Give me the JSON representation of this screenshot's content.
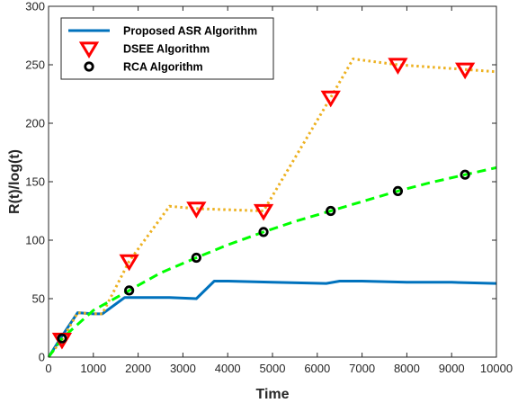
{
  "chart_data": {
    "type": "line",
    "title": "",
    "xlabel": "Time",
    "ylabel": "R(t)/log(t)",
    "xlim": [
      0,
      10000
    ],
    "ylim": [
      0,
      300
    ],
    "xticks": [
      0,
      1000,
      2000,
      3000,
      4000,
      5000,
      6000,
      7000,
      8000,
      9000,
      10000
    ],
    "yticks": [
      0,
      50,
      100,
      150,
      200,
      250,
      300
    ],
    "grid": false,
    "legend_position": "top-left",
    "series": [
      {
        "name": "Proposed ASR Algorithm",
        "color": "#0072BD",
        "line_style": "solid",
        "marker": "none",
        "x": [
          0,
          300,
          650,
          1000,
          1200,
          1700,
          2200,
          2700,
          3300,
          3700,
          4000,
          5000,
          6200,
          6500,
          7000,
          8000,
          9000,
          10000
        ],
        "y": [
          0,
          18,
          38,
          37,
          37,
          51,
          51,
          51,
          50,
          65,
          65,
          64,
          63,
          65,
          65,
          64,
          64,
          63
        ]
      },
      {
        "name": "DSEE Algorithm",
        "color": "#EDB120",
        "marker_color": "#FF0000",
        "line_style": "dotted",
        "marker": "triangle-down",
        "x": [
          0,
          300,
          650,
          1000,
          1200,
          1800,
          2700,
          3300,
          4800,
          6300,
          6800,
          7800,
          9300,
          10000
        ],
        "y": [
          0,
          15,
          38,
          37,
          37,
          82,
          129,
          127,
          125,
          222,
          255,
          250,
          246,
          244
        ],
        "marker_x": [
          300,
          1800,
          3300,
          4800,
          6300,
          7800,
          9300
        ],
        "marker_y": [
          15,
          82,
          127,
          125,
          222,
          250,
          246
        ]
      },
      {
        "name": "RCA Algorithm",
        "color": "#00FF00",
        "marker_color": "#000000",
        "line_style": "dashed",
        "marker": "circle",
        "x": [
          0,
          300,
          1000,
          1800,
          2500,
          3300,
          4000,
          4800,
          5500,
          6300,
          7000,
          7800,
          8500,
          9300,
          10000
        ],
        "y": [
          0,
          16,
          40,
          57,
          72,
          85,
          96,
          107,
          116,
          125,
          133,
          142,
          149,
          156,
          162
        ],
        "marker_x": [
          300,
          1800,
          3300,
          4800,
          6300,
          7800,
          9300
        ],
        "marker_y": [
          16,
          57,
          85,
          107,
          125,
          142,
          156
        ]
      }
    ]
  }
}
